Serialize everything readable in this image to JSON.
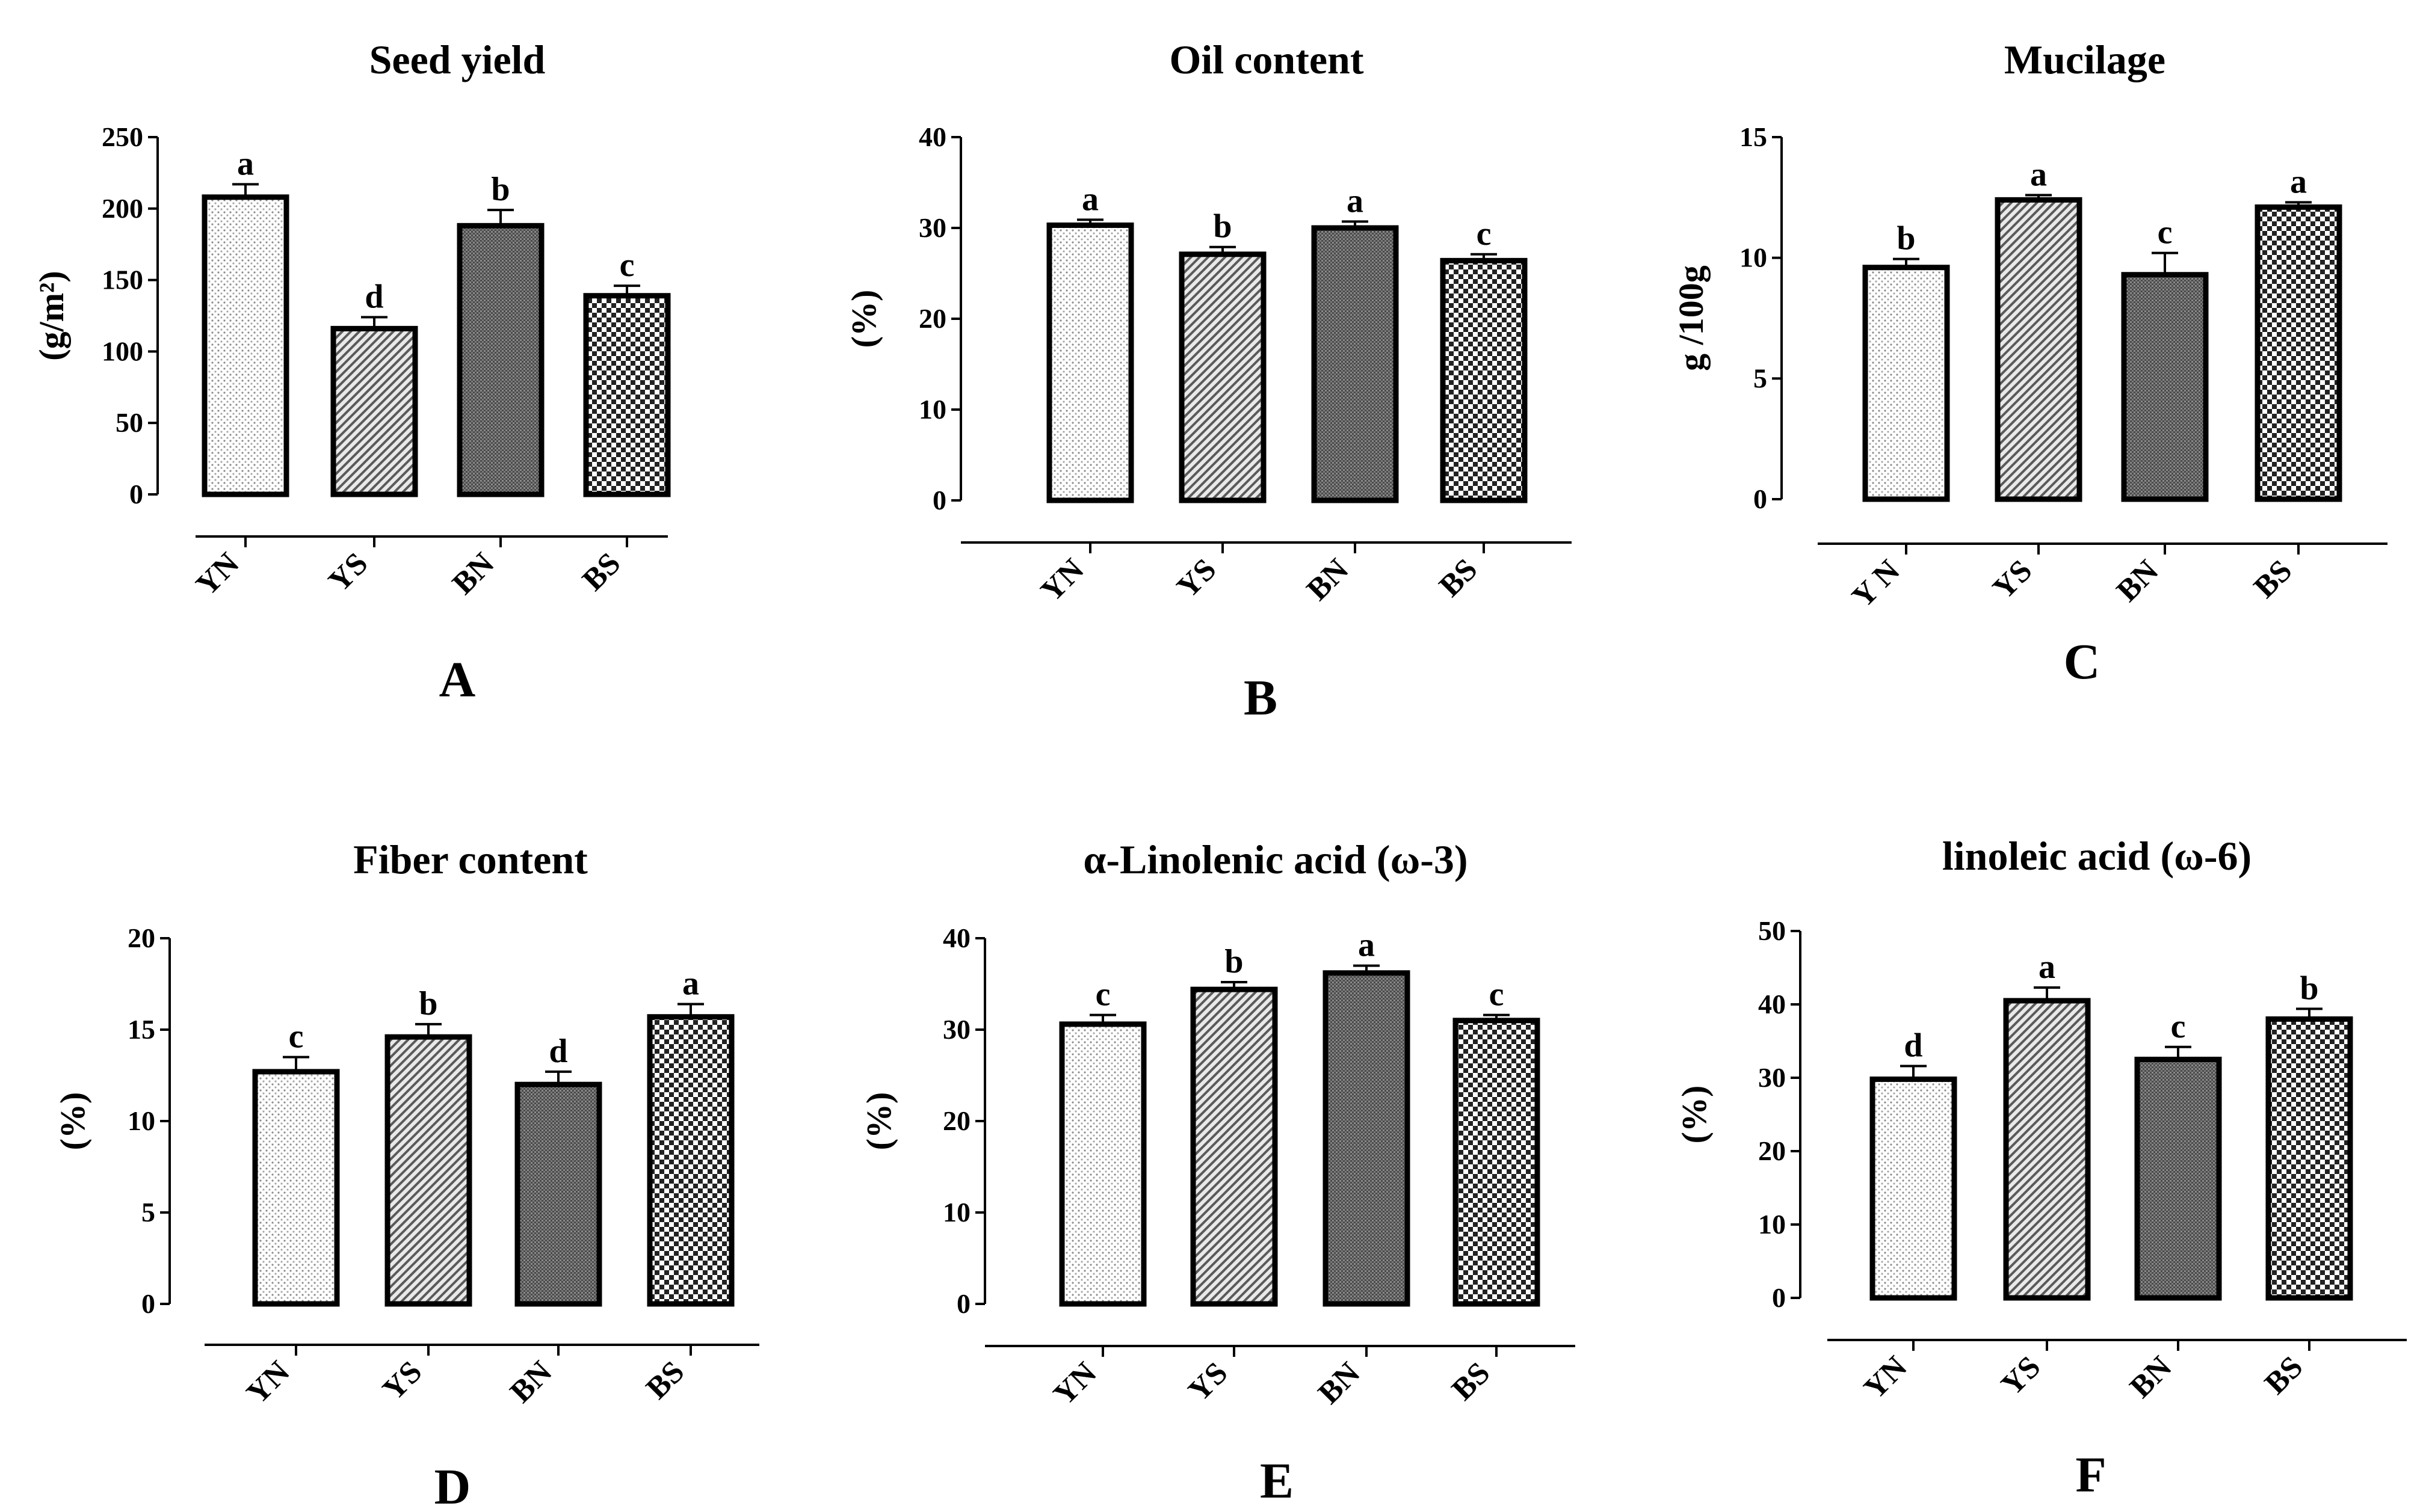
{
  "figure": {
    "background": "#ffffff",
    "ink": "#000000",
    "bar_patterns": [
      "light-dots",
      "diagonal-hatch",
      "dark-fine",
      "checker"
    ]
  },
  "chart_data": [
    {
      "type": "bar",
      "panel": "A",
      "title": "Seed yield",
      "ylabel": "(g/m²)",
      "categories": [
        "YN",
        "YS",
        "BN",
        "BS"
      ],
      "values": [
        208,
        116,
        188,
        139
      ],
      "errors": [
        9,
        8,
        11,
        7
      ],
      "letters": [
        "a",
        "d",
        "b",
        "c"
      ],
      "ylim": [
        0,
        250
      ],
      "yticks": [
        0,
        50,
        100,
        150,
        200,
        250
      ]
    },
    {
      "type": "bar",
      "panel": "B",
      "title": "Oil content",
      "ylabel": "(%)",
      "categories": [
        "YN",
        "YS",
        "BN",
        "BS"
      ],
      "values": [
        30.3,
        27.1,
        30.0,
        26.4
      ],
      "errors": [
        0.6,
        0.8,
        0.7,
        0.7
      ],
      "letters": [
        "a",
        "b",
        "a",
        "c"
      ],
      "ylim": [
        0,
        40
      ],
      "yticks": [
        0,
        10,
        20,
        30,
        40
      ]
    },
    {
      "type": "bar",
      "panel": "C",
      "title": "Mucilage",
      "ylabel": "g /100g",
      "categories": [
        "Y N",
        "YS",
        "BN",
        "BS"
      ],
      "values": [
        9.6,
        12.4,
        9.3,
        12.1
      ],
      "errors": [
        0.35,
        0.2,
        0.9,
        0.2
      ],
      "letters": [
        "b",
        "a",
        "c",
        "a"
      ],
      "ylim": [
        0,
        15
      ],
      "yticks": [
        0,
        5,
        10,
        15
      ]
    },
    {
      "type": "bar",
      "panel": "D",
      "title": "Fiber content",
      "ylabel": "(%)",
      "categories": [
        "YN",
        "YS",
        "BN",
        "BS"
      ],
      "values": [
        12.7,
        14.6,
        12.0,
        15.7
      ],
      "errors": [
        0.8,
        0.7,
        0.7,
        0.7
      ],
      "letters": [
        "c",
        "b",
        "d",
        "a"
      ],
      "ylim": [
        0,
        20
      ],
      "yticks": [
        0,
        5,
        10,
        15,
        20
      ]
    },
    {
      "type": "bar",
      "panel": "E",
      "title": "α-Linolenic acid (ω-3)",
      "ylabel": "(%)",
      "categories": [
        "YN",
        "YS",
        "BN",
        "BS"
      ],
      "values": [
        30.6,
        34.4,
        36.2,
        31.0
      ],
      "errors": [
        1.0,
        0.8,
        0.8,
        0.6
      ],
      "letters": [
        "c",
        "b",
        "a",
        "c"
      ],
      "ylim": [
        0,
        40
      ],
      "yticks": [
        0,
        10,
        20,
        30,
        40
      ]
    },
    {
      "type": "bar",
      "panel": "F",
      "title": "linoleic acid (ω-6)",
      "ylabel": "(%)",
      "categories": [
        "YN",
        "YS",
        "BN",
        "BS"
      ],
      "values": [
        29.8,
        40.5,
        32.5,
        38.0
      ],
      "errors": [
        1.8,
        1.8,
        1.7,
        1.4
      ],
      "letters": [
        "d",
        "a",
        "c",
        "b"
      ],
      "ylim": [
        0,
        50
      ],
      "yticks": [
        0,
        10,
        20,
        30,
        40,
        50
      ]
    }
  ]
}
